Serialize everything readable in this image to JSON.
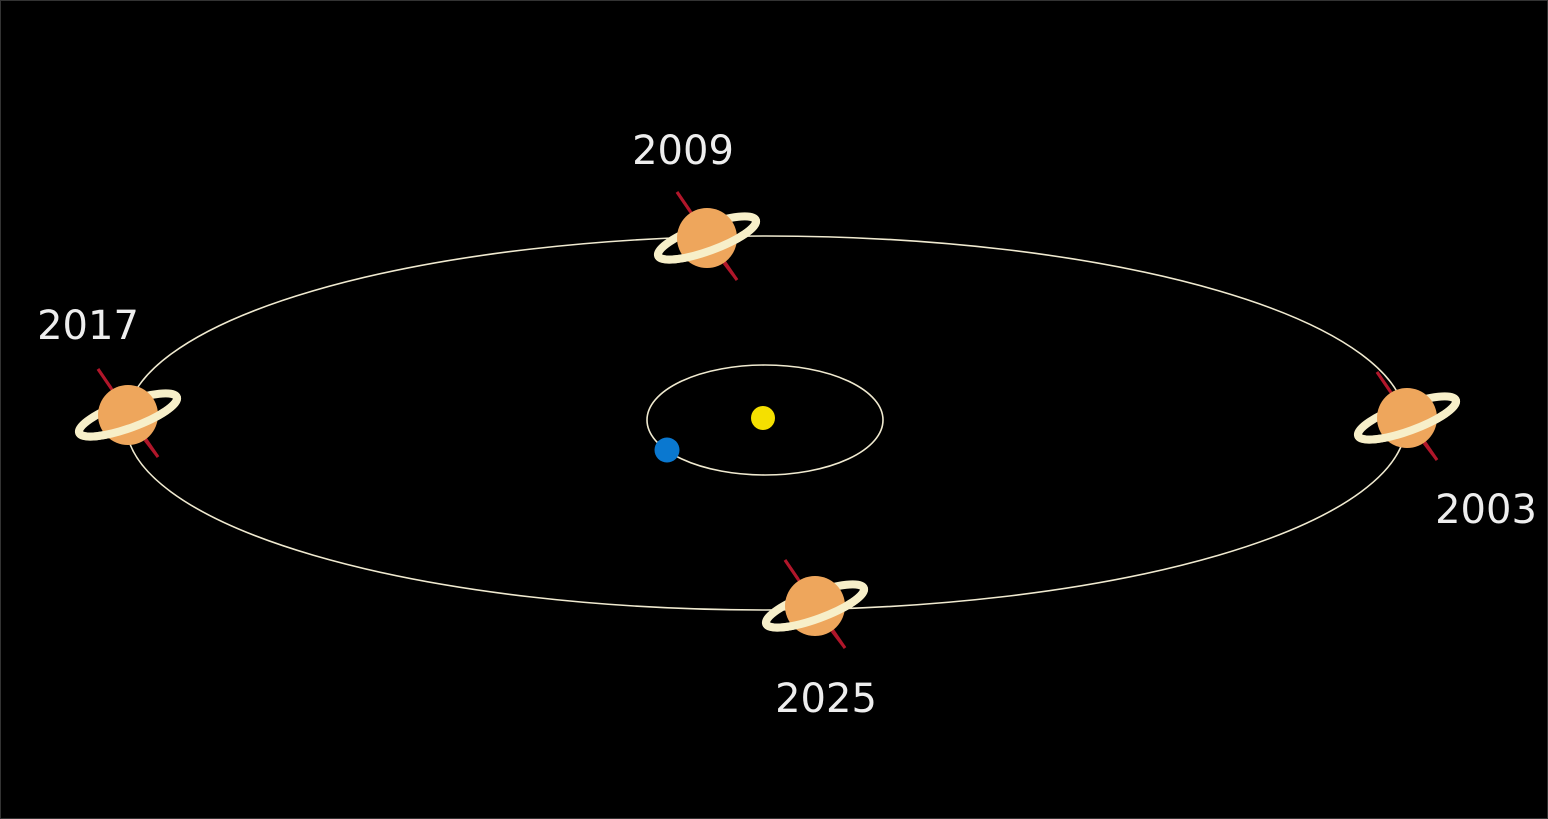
{
  "nodes": [
    {
      "label": "2009"
    },
    {
      "label": "2017"
    },
    {
      "label": "2003"
    },
    {
      "label": "2025"
    }
  ]
}
